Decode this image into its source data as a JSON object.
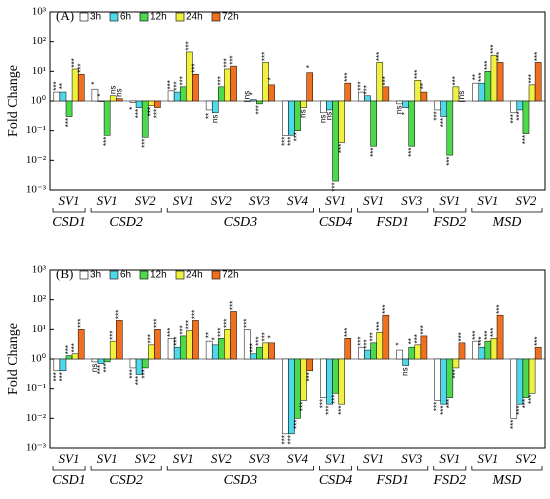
{
  "chart_data": [
    {
      "type": "bar",
      "title": "(A)",
      "y_label": "Fold Change",
      "log_scale": true,
      "categories": [
        "SV1",
        "SV1",
        "SV2",
        "SV1",
        "SV2",
        "SV3",
        "SV4",
        "SV1",
        "SV1",
        "SV3",
        "SV1",
        "SV1",
        "SV2"
      ],
      "groups": [
        "CSD1",
        "CSD2",
        "CSD2",
        "CSD3",
        "CSD3",
        "CSD3",
        "CSD3",
        "CSD4",
        "FSD1",
        "FSD1",
        "FSD2",
        "MSD",
        "MSD"
      ],
      "ylim": [
        0.001,
        1000
      ],
      "yticks": [
        {
          "value": 0.001,
          "label": "10⁻³"
        },
        {
          "value": 0.01,
          "label": "10⁻²"
        },
        {
          "value": 0.1,
          "label": "10⁻¹"
        },
        {
          "value": 1,
          "label": "10⁰"
        },
        {
          "value": 10,
          "label": "10¹"
        },
        {
          "value": 100,
          "label": "10²"
        },
        {
          "value": 1000,
          "label": "10³"
        }
      ],
      "legend": "top-left",
      "series": [
        {
          "name": "3h",
          "color": "#ffffff",
          "values": [
            2,
            2.5,
            0.9,
            2.2,
            0.5,
            1,
            0.07,
            0.4,
            2,
            0.8,
            0.5,
            4,
            0.4
          ],
          "significance": [
            "***",
            "*",
            "*",
            "***",
            "**",
            "ns",
            "***",
            "ns",
            "***",
            "ns",
            "***",
            "**",
            "***"
          ]
        },
        {
          "name": "6h",
          "color": "#4fd8e8",
          "values": [
            2,
            1,
            0.6,
            2,
            0.4,
            1.1,
            0.07,
            0.5,
            1.5,
            0.6,
            0.3,
            4,
            0.5
          ],
          "significance": [
            "**",
            "*",
            "***",
            "***",
            "ns",
            "*",
            "***",
            "ns",
            "***",
            "*",
            "***",
            "***",
            "***"
          ]
        },
        {
          "name": "12h",
          "color": "#4cd94c",
          "values": [
            0.3,
            0.07,
            0.06,
            3,
            3,
            0.8,
            0.1,
            0.002,
            0.03,
            0.03,
            0.015,
            10,
            0.08
          ],
          "significance": [
            "***",
            "***",
            "***",
            "***",
            "***",
            "***",
            "***",
            "***",
            "***",
            "***",
            "***",
            "***",
            "***"
          ]
        },
        {
          "name": "24h",
          "color": "#f0f040",
          "values": [
            12,
            1.5,
            0.7,
            45,
            12,
            20,
            0.6,
            0.04,
            20,
            5,
            3,
            35,
            3.5
          ],
          "significance": [
            "***",
            "ns",
            "***",
            "***",
            "***",
            "***",
            "ns",
            "***",
            "***",
            "***",
            "***",
            "***",
            "***"
          ]
        },
        {
          "name": "72h",
          "color": "#f07020",
          "values": [
            8,
            1.2,
            0.6,
            8,
            15,
            3.5,
            9,
            4,
            3,
            2,
            1,
            20,
            20
          ],
          "significance": [
            "***",
            "ns",
            "***",
            "***",
            "***",
            "*",
            "*",
            "***",
            "***",
            "**",
            "ns",
            "***",
            "***"
          ]
        }
      ]
    },
    {
      "type": "bar",
      "title": "(B)",
      "y_label": "Fold Change",
      "log_scale": true,
      "categories": [
        "SV1",
        "SV1",
        "SV2",
        "SV1",
        "SV2",
        "SV3",
        "SV4",
        "SV1",
        "SV1",
        "SV3",
        "SV1",
        "SV1",
        "SV2"
      ],
      "groups": [
        "CSD1",
        "CSD2",
        "CSD2",
        "CSD3",
        "CSD3",
        "CSD3",
        "CSD3",
        "CSD4",
        "FSD1",
        "FSD1",
        "FSD2",
        "MSD",
        "MSD"
      ],
      "ylim": [
        0.001,
        1000
      ],
      "yticks": [
        {
          "value": 0.001,
          "label": "10⁻³"
        },
        {
          "value": 0.01,
          "label": "10⁻²"
        },
        {
          "value": 0.1,
          "label": "10⁻¹"
        },
        {
          "value": 1,
          "label": "10⁰"
        },
        {
          "value": 10,
          "label": "10¹"
        },
        {
          "value": 100,
          "label": "10²"
        },
        {
          "value": 1000,
          "label": "10³"
        }
      ],
      "legend": "top-left",
      "series": [
        {
          "name": "3h",
          "color": "#ffffff",
          "values": [
            0.4,
            0.8,
            0.5,
            5,
            4,
            10,
            0.003,
            0.05,
            2.5,
            2,
            0.04,
            4,
            0.01
          ],
          "significance": [
            "***",
            "ns",
            "***",
            "***",
            "**",
            "***",
            "***",
            "***",
            "***",
            "*",
            "***",
            "***",
            "***"
          ]
        },
        {
          "name": "6h",
          "color": "#4fd8e8",
          "values": [
            0.4,
            0.7,
            0.3,
            2.5,
            3,
            1.5,
            0.003,
            0.03,
            2,
            0.6,
            0.03,
            2.5,
            0.03
          ],
          "significance": [
            "***",
            "***",
            "***",
            "***",
            "*",
            "***",
            "***",
            "***",
            "***",
            "ns",
            "***",
            "***",
            "***"
          ]
        },
        {
          "name": "12h",
          "color": "#4cd94c",
          "values": [
            1.3,
            0.8,
            0.5,
            6,
            5,
            2.5,
            0.01,
            0.07,
            3.5,
            2.5,
            0.05,
            4,
            0.05
          ],
          "significance": [
            "***",
            "***",
            "***",
            "***",
            "***",
            "***",
            "***",
            "***",
            "***",
            "**",
            "***",
            "***",
            "***"
          ]
        },
        {
          "name": "24h",
          "color": "#f0f040",
          "values": [
            1.5,
            4,
            3,
            9,
            10,
            3.5,
            0.04,
            0.03,
            8,
            3,
            0.5,
            5,
            0.07
          ],
          "significance": [
            "***",
            "***",
            "***",
            "***",
            "***",
            "***",
            "***",
            "***",
            "***",
            "***",
            "***",
            "***",
            "***"
          ]
        },
        {
          "name": "72h",
          "color": "#f07020",
          "values": [
            10,
            20,
            10,
            20,
            40,
            3.5,
            0.4,
            5,
            30,
            6,
            3.5,
            30,
            2.5
          ],
          "significance": [
            "***",
            "***",
            "***",
            "***",
            "***",
            "*",
            "***",
            "***",
            "***",
            "***",
            "***",
            "***",
            "***"
          ]
        }
      ]
    }
  ]
}
